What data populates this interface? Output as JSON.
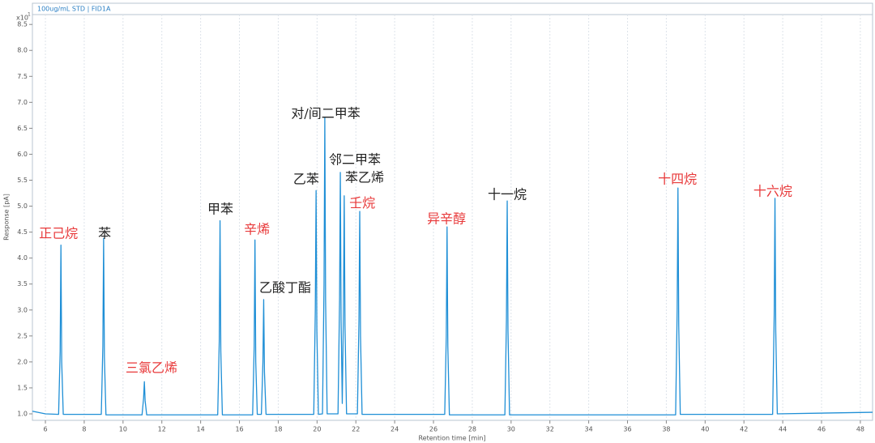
{
  "chart_data": {
    "type": "line",
    "title": "100ug/mL STD | FID1A",
    "xlabel": "Retention time [min]",
    "ylabel": "Response [pA]",
    "y_scale_base": "x10",
    "y_scale_power": "1",
    "xlim": [
      5.33,
      48.63
    ],
    "ylim": [
      0.875,
      8.69
    ],
    "xticks": [
      6,
      8,
      10,
      12,
      14,
      16,
      18,
      20,
      22,
      24,
      26,
      28,
      30,
      32,
      34,
      36,
      38,
      40,
      42,
      44,
      46,
      48
    ],
    "yticks": [
      {
        "value": 1,
        "label": "1.0"
      },
      1.5,
      {
        "value": 2,
        "label": "2.0"
      },
      2.5,
      {
        "value": 3,
        "label": "3.0"
      },
      3.5,
      {
        "value": 4,
        "label": "4.0"
      },
      4.5,
      {
        "value": 5,
        "label": "5.0"
      },
      5.5,
      {
        "value": 6,
        "label": "6.0"
      },
      6.5,
      {
        "value": 7,
        "label": "7.0"
      },
      7.5,
      {
        "value": 8,
        "label": "8.0"
      },
      8.5
    ],
    "grid": "x",
    "x": [
      5.33,
      6.0,
      6.68,
      6.76,
      6.8,
      6.84,
      6.92,
      8.88,
      8.96,
      9.0,
      9.04,
      9.12,
      10.98,
      11.06,
      11.1,
      11.14,
      11.22,
      14.88,
      14.96,
      15.0,
      15.04,
      15.12,
      16.68,
      16.76,
      16.8,
      16.84,
      16.92,
      17.13,
      17.21,
      17.25,
      17.29,
      17.37,
      19.83,
      19.91,
      19.95,
      19.99,
      20.07,
      20.28,
      20.36,
      20.4,
      20.44,
      20.52,
      21.08,
      21.16,
      21.2,
      21.24,
      21.3,
      21.36,
      21.4,
      21.44,
      21.52,
      22.08,
      22.16,
      22.2,
      22.24,
      22.32,
      26.58,
      26.66,
      26.7,
      26.74,
      26.82,
      29.68,
      29.76,
      29.8,
      29.84,
      29.92,
      38.48,
      38.56,
      38.6,
      38.64,
      38.72,
      43.48,
      43.56,
      43.6,
      43.64,
      43.72,
      48.63
    ],
    "series": [
      {
        "color": "#1f8fd6",
        "values": [
          1.05,
          1.0,
          0.99,
          2.2,
          4.25,
          2.0,
          0.99,
          0.99,
          2.3,
          4.38,
          2.1,
          0.98,
          0.98,
          1.3,
          1.62,
          1.25,
          0.98,
          0.98,
          2.4,
          4.72,
          2.2,
          0.98,
          0.98,
          2.3,
          4.35,
          2.0,
          0.99,
          0.99,
          2.0,
          3.2,
          1.8,
          0.99,
          0.99,
          3.0,
          5.3,
          2.6,
          0.99,
          1.0,
          3.5,
          6.7,
          3.2,
          1.0,
          1.0,
          3.2,
          5.65,
          2.8,
          1.2,
          3.0,
          5.2,
          2.7,
          1.0,
          1.0,
          2.8,
          4.9,
          2.5,
          0.99,
          0.99,
          2.5,
          4.6,
          2.3,
          0.98,
          0.98,
          2.8,
          5.1,
          2.6,
          0.98,
          0.98,
          3.0,
          5.35,
          2.7,
          0.99,
          0.99,
          2.9,
          5.15,
          2.6,
          1.0,
          1.03
        ]
      }
    ],
    "annotations": [
      {
        "text": "正己烷",
        "x": 6.67,
        "y": 4.46,
        "color": "#e8393a"
      },
      {
        "text": "苯",
        "x": 9.05,
        "y": 4.46,
        "color": "#222222"
      },
      {
        "text": "三氯乙烯",
        "x": 11.47,
        "y": 1.87,
        "color": "#e8393a"
      },
      {
        "text": "甲苯",
        "x": 15.02,
        "y": 4.93,
        "color": "#222222"
      },
      {
        "text": "辛烯",
        "x": 16.9,
        "y": 4.54,
        "color": "#e8393a"
      },
      {
        "text": "乙酸丁酯",
        "x": 18.36,
        "y": 3.42,
        "color": "#222222"
      },
      {
        "text": "乙苯",
        "x": 19.44,
        "y": 5.51,
        "color": "#222222"
      },
      {
        "text": "对/间二甲苯",
        "x": 20.45,
        "y": 6.77,
        "color": "#222222"
      },
      {
        "text": "邻二甲苯",
        "x": 21.95,
        "y": 5.88,
        "color": "#222222"
      },
      {
        "text": "苯乙烯",
        "x": 22.45,
        "y": 5.54,
        "color": "#222222"
      },
      {
        "text": "壬烷",
        "x": 22.33,
        "y": 5.05,
        "color": "#e8393a"
      },
      {
        "text": "异辛醇",
        "x": 26.67,
        "y": 4.74,
        "color": "#e8393a"
      },
      {
        "text": "十一烷",
        "x": 29.8,
        "y": 5.21,
        "color": "#222222"
      },
      {
        "text": "十四烷",
        "x": 38.57,
        "y": 5.51,
        "color": "#e8393a"
      },
      {
        "text": "十六烷",
        "x": 43.49,
        "y": 5.27,
        "color": "#e8393a"
      }
    ]
  }
}
